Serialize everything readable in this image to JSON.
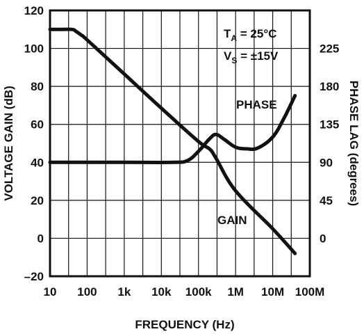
{
  "chart_data": {
    "type": "line",
    "xlabel": "FREQUENCY (Hz)",
    "ylabel_left": "VOLTAGE GAIN (dB)",
    "ylabel_right": "PHASE LAG (degrees)",
    "x_scale": "log",
    "xlim": [
      10,
      100000000
    ],
    "ylim_left": [
      -20,
      120
    ],
    "ylim_right": [
      -45,
      270
    ],
    "grid": true,
    "x_ticks": [
      "10",
      "100",
      "1k",
      "10k",
      "100k",
      "1M",
      "10M",
      "100M"
    ],
    "y_left_ticks": [
      "-20",
      "0",
      "20",
      "40",
      "60",
      "80",
      "100",
      "120"
    ],
    "y_right_ticks": [
      "0",
      "45",
      "90",
      "135",
      "180",
      "225"
    ],
    "conditions": {
      "ta_main": "T",
      "ta_sub": "A",
      "ta_value": " = 25°C",
      "vs_main": "V",
      "vs_sub": "S",
      "vs_value": " = ±15V"
    },
    "series": [
      {
        "name": "GAIN",
        "axis": "left",
        "x": [
          10,
          20,
          40,
          50,
          70,
          100,
          1000,
          10000,
          100000,
          200000,
          300000,
          1000000,
          10000000,
          40000000
        ],
        "values": [
          110,
          110,
          110,
          109,
          107,
          104.5,
          86.5,
          68.5,
          51,
          47,
          42,
          25,
          5,
          -8
        ]
      },
      {
        "name": "PHASE",
        "axis": "right",
        "x": [
          10,
          1000,
          20000,
          50000,
          100000,
          200000,
          300000,
          500000,
          1000000,
          2000000,
          4000000,
          10000000,
          20000000,
          40000000
        ],
        "values": [
          90,
          90,
          90,
          92,
          103,
          118,
          123,
          117,
          108,
          106,
          107,
          120,
          142,
          169
        ]
      }
    ]
  }
}
